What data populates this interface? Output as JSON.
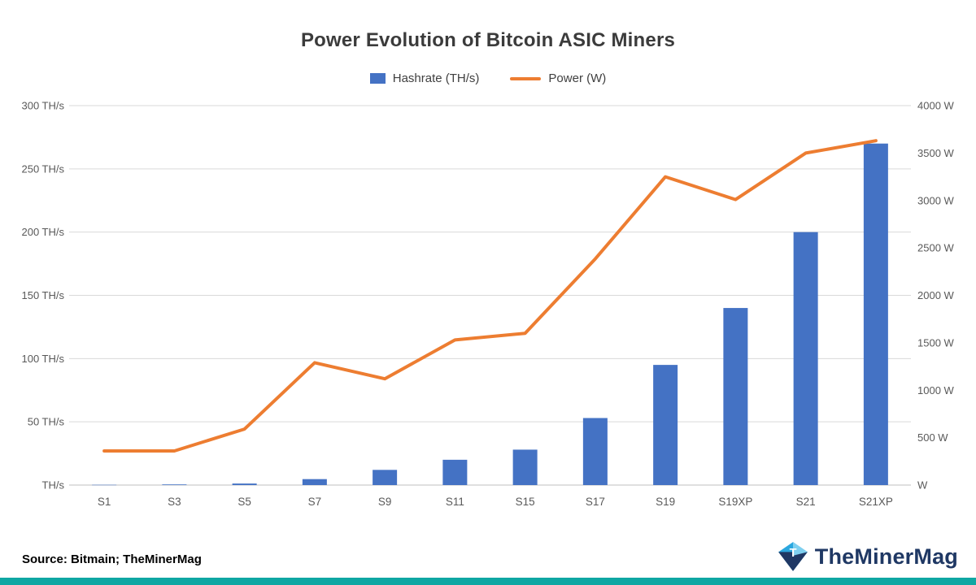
{
  "page": {
    "footer": {
      "source": "Source: Bitmain; TheMinerMag",
      "logo_text": "TheMinerMag"
    }
  },
  "colors": {
    "bar": "#4472C4",
    "line": "#ED7D31",
    "grid": "#D9D9D9",
    "axis_line": "#BFBFBF",
    "axis_text": "#595959",
    "title_text": "#3b3b3b",
    "teal_strip": "#0FA7A3",
    "logo_navy": "#1F3864",
    "logo_light_blue": "#2BA7DF"
  },
  "chart_data": {
    "type": "combo-bar-line",
    "title": "Power Evolution of Bitcoin ASIC Miners",
    "categories": [
      "S1",
      "S3",
      "S5",
      "S7",
      "S9",
      "S11",
      "S15",
      "S17",
      "S19",
      "S19XP",
      "S21",
      "S21XP"
    ],
    "series": [
      {
        "name": "Hashrate (TH/s)",
        "type": "bar",
        "axis": "left",
        "color": "#4472C4",
        "values": [
          0.2,
          0.5,
          1.2,
          4.7,
          12,
          20,
          28,
          53,
          95,
          140,
          200,
          270
        ]
      },
      {
        "name": "Power (W)",
        "type": "line",
        "axis": "right",
        "color": "#ED7D31",
        "values": [
          360,
          360,
          590,
          1290,
          1120,
          1530,
          1600,
          2385,
          3250,
          3010,
          3500,
          3630
        ]
      }
    ],
    "y_left": {
      "min": 0,
      "max": 300,
      "step": 50,
      "tick_labels_top_down": [
        "300 TH/s",
        "250 TH/s",
        "200 TH/s",
        "150 TH/s",
        "100 TH/s",
        "50 TH/s",
        "TH/s"
      ]
    },
    "y_right": {
      "min": 0,
      "max": 4000,
      "step": 500,
      "tick_labels_top_down": [
        "4000 W",
        "3500 W",
        "3000 W",
        "2500 W",
        "2000 W",
        "1500 W",
        "1000 W",
        "500 W",
        "W"
      ]
    },
    "grid": true,
    "legend_position": "top"
  }
}
